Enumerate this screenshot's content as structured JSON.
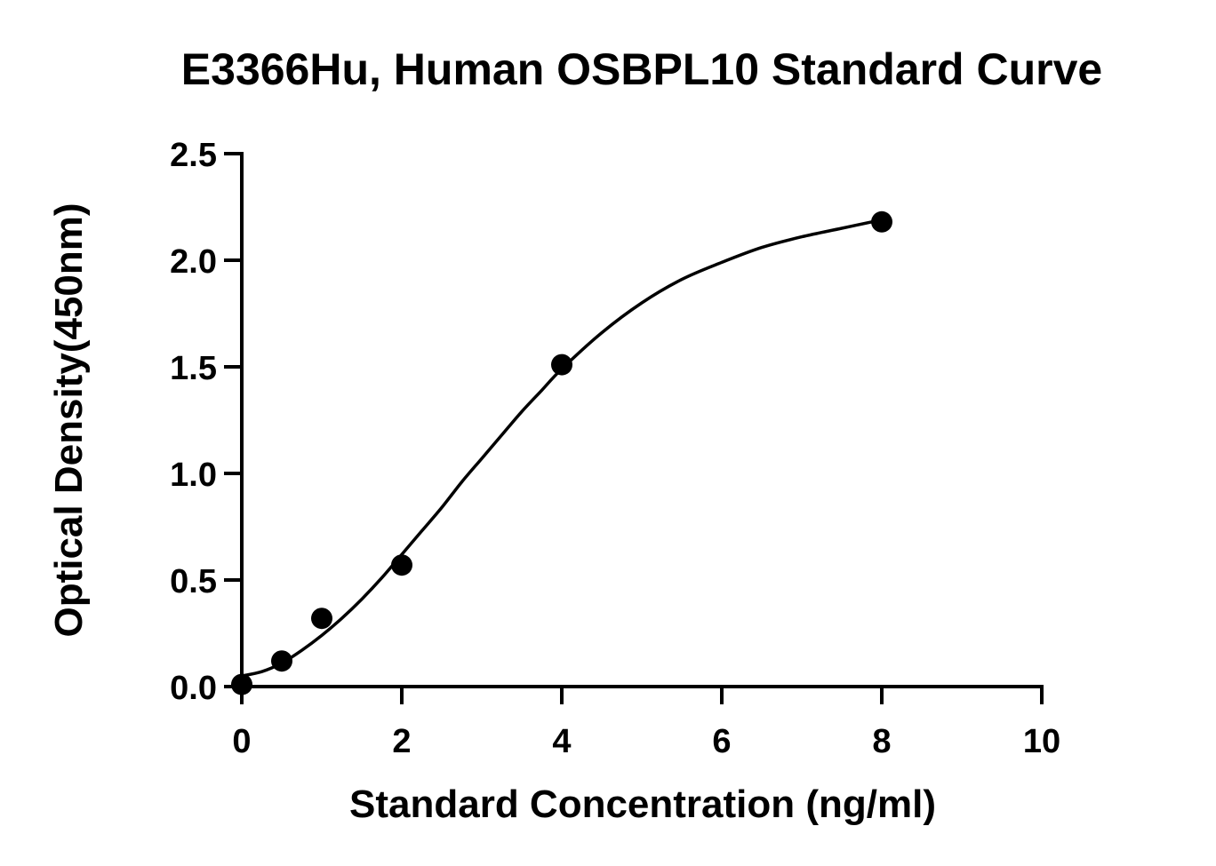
{
  "chart_data": {
    "type": "scatter",
    "title": "E3366Hu, Human OSBPL10 Standard Curve",
    "xlabel": "Standard Concentration (ng/ml)",
    "ylabel": "Optical Density(450nm)",
    "xlim": [
      0,
      10
    ],
    "ylim": [
      0,
      2.5
    ],
    "x_ticks": [
      0,
      2,
      4,
      6,
      8,
      10
    ],
    "y_ticks": [
      0.0,
      0.5,
      1.0,
      1.5,
      2.0,
      2.5
    ],
    "x_tick_labels": [
      "0",
      "2",
      "4",
      "6",
      "8",
      "10"
    ],
    "y_tick_labels": [
      "0.0",
      "0.5",
      "1.0",
      "1.5",
      "2.0",
      "2.5"
    ],
    "grid": false,
    "legend": "none",
    "series": [
      {
        "x": [
          0,
          0.5,
          1,
          2,
          4,
          8
        ],
        "y": [
          0.01,
          0.12,
          0.32,
          0.57,
          1.51,
          2.18
        ],
        "marker": "circle",
        "color": "#000000",
        "fit": "4PL",
        "fit_curve": {
          "x": [
            0,
            0.25,
            0.5,
            0.75,
            1,
            1.25,
            1.5,
            1.75,
            2,
            2.25,
            2.5,
            2.75,
            3,
            3.25,
            3.5,
            3.75,
            4,
            4.5,
            5,
            5.5,
            6,
            6.5,
            7,
            7.5,
            8
          ],
          "y": [
            0.05,
            0.07,
            0.11,
            0.17,
            0.24,
            0.32,
            0.41,
            0.51,
            0.62,
            0.73,
            0.84,
            0.96,
            1.07,
            1.18,
            1.29,
            1.39,
            1.49,
            1.66,
            1.8,
            1.91,
            1.99,
            2.06,
            2.11,
            2.15,
            2.19
          ]
        }
      }
    ]
  }
}
